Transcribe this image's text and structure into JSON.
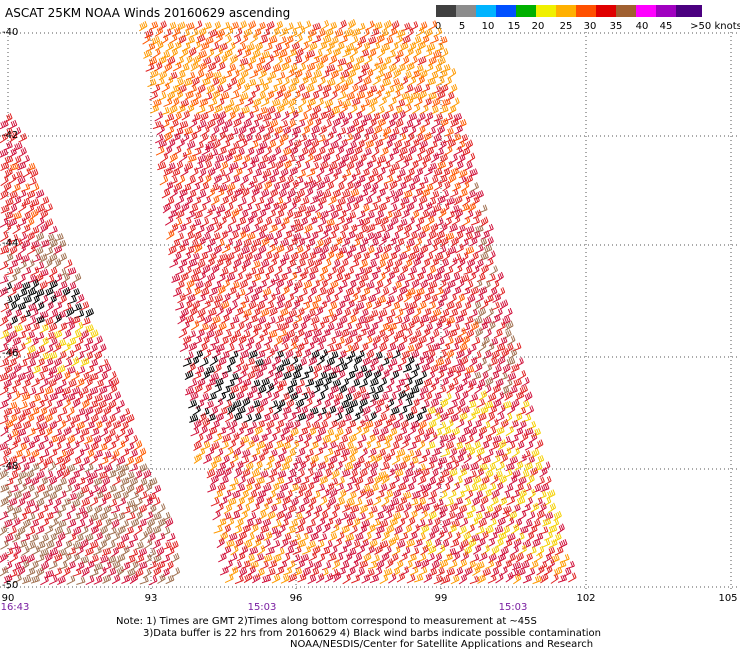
{
  "title": "ASCAT 25KM NOAA Winds 20160629 ascending",
  "colorbar": {
    "colors": [
      "#404040",
      "#8c8c8c",
      "#00b4ff",
      "#0050ff",
      "#00b000",
      "#f0f000",
      "#ffb000",
      "#ff5000",
      "#e00000",
      "#a06030",
      "#ff00ff",
      "#a000c0",
      "#4b0080"
    ],
    "labels": [
      "0",
      "5",
      "10",
      "15",
      "20",
      "25",
      "30",
      "35",
      "40",
      "45",
      ">50 knots"
    ]
  },
  "lat_labels": [
    "-40",
    "-42",
    "-44",
    "-46",
    "-48",
    "-50"
  ],
  "lon_labels": [
    "90",
    "93",
    "96",
    "99",
    "102",
    "105"
  ],
  "time_labels": [
    "16:43",
    "15:03",
    "15:03"
  ],
  "notes": {
    "line1": "Note: 1) Times are GMT 2)Times along bottom correspond to measurement at ~45S",
    "line2": "3)Data buffer is 22 hrs from 20160629 4) Black wind barbs indicate possible contamination",
    "line3": "NOAA/NESDIS/Center for Satellite Applications and Research"
  },
  "barb_colors": {
    "red": "#e02020",
    "crimson": "#d0103a",
    "orange": "#ff5a00",
    "amber": "#ff9a00",
    "yellow": "#f5d000",
    "brown": "#a07050",
    "black": "#000000"
  }
}
